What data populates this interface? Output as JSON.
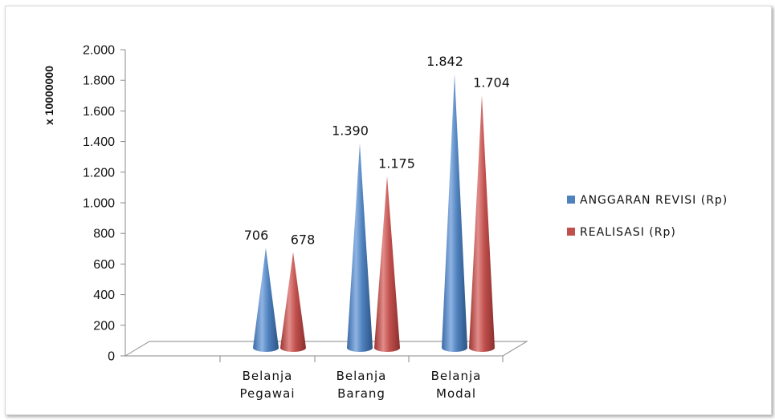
{
  "chart_data": {
    "type": "bar",
    "style": "3d-cone",
    "categories": [
      "Belanja Pegawai",
      "Belanja Barang",
      "Belanja Modal"
    ],
    "category_lines": [
      [
        "Belanja",
        "Pegawai"
      ],
      [
        "Belanja",
        "Barang"
      ],
      [
        "Belanja",
        "Modal"
      ]
    ],
    "series": [
      {
        "name": "ANGGARAN REVISI (Rp)",
        "values": [
          706,
          1390,
          1842
        ],
        "labels": [
          "706",
          "1.390",
          "1.842"
        ],
        "color": "#4f81bd"
      },
      {
        "name": "REALISASI (Rp)",
        "values": [
          678,
          1175,
          1704
        ],
        "labels": [
          "678",
          "1.175",
          "1.704"
        ],
        "color": "#c0504d"
      }
    ],
    "ylabel": "x 10000000",
    "ylim": [
      0,
      2000
    ],
    "yticks": [
      0,
      200,
      400,
      600,
      800,
      1000,
      1200,
      1400,
      1600,
      1800,
      2000
    ],
    "ytick_labels": [
      "0",
      "200",
      "400",
      "600",
      "800",
      "1.000",
      "1.200",
      "1.400",
      "1.600",
      "1.800",
      "2.000"
    ],
    "grid": false,
    "legend": "right"
  }
}
